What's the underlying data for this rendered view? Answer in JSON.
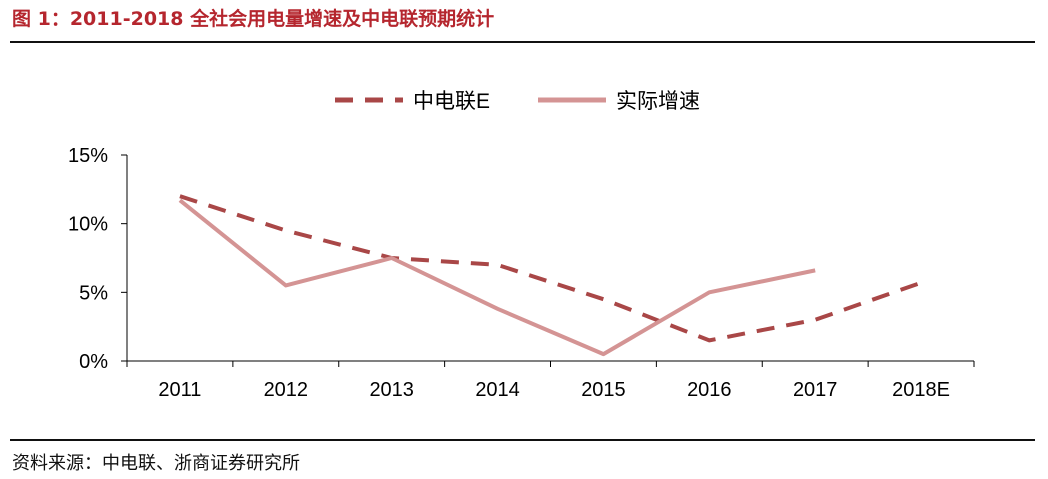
{
  "figure": {
    "title": "图 1：2011-2018 全社会用电量增速及中电联预期统计",
    "source": "资料来源：中电联、浙商证券研究所"
  },
  "colors": {
    "title": "#b5262e",
    "forecast_series": "#a94747",
    "actual_series": "#d49494",
    "axis": "#000000"
  },
  "chart_data": {
    "type": "line",
    "categories": [
      "2011",
      "2012",
      "2013",
      "2014",
      "2015",
      "2016",
      "2017",
      "2018E"
    ],
    "ylim": [
      0,
      15
    ],
    "yticks": [
      0,
      5,
      10,
      15
    ],
    "ytick_labels": [
      "0%",
      "5%",
      "10%",
      "15%"
    ],
    "grid": false,
    "legend_position": "top-center",
    "series": [
      {
        "name": "中电联E",
        "style": "dashed",
        "color": "#a94747",
        "values": [
          12.0,
          9.5,
          7.5,
          7.0,
          4.5,
          1.5,
          3.0,
          5.7
        ]
      },
      {
        "name": "实际增速",
        "style": "solid",
        "color": "#d49494",
        "values": [
          11.7,
          5.5,
          7.5,
          3.8,
          0.5,
          5.0,
          6.6,
          null
        ]
      }
    ]
  }
}
